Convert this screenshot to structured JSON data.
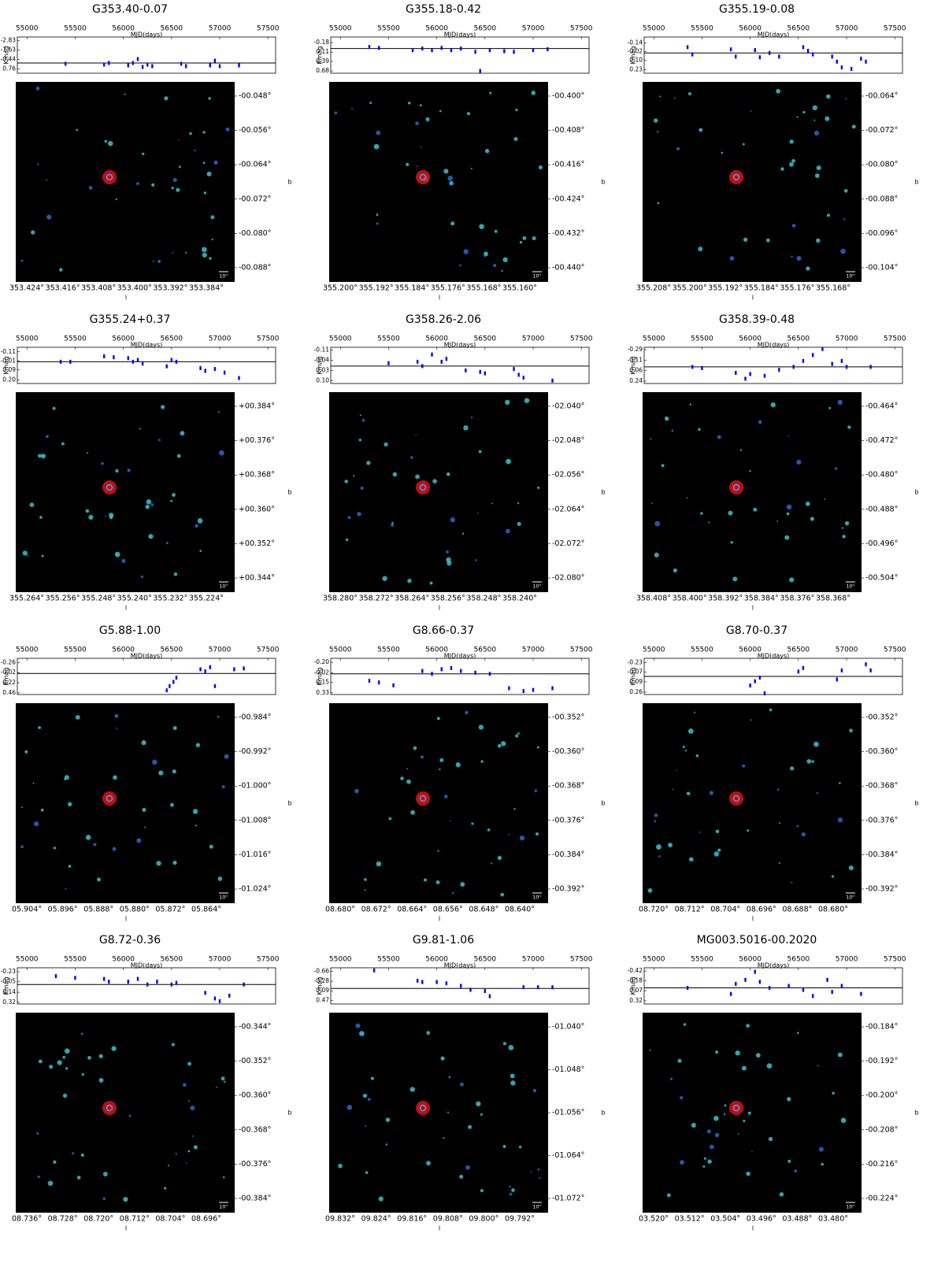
{
  "chart_data": [
    {
      "type": "scatter",
      "title": "G353.40-0.07",
      "xlabel": "MJD(days)",
      "ylabel": "Kmag",
      "color": "#0000ff",
      "y_inverted": true,
      "reference_line": 0,
      "xlim": [
        54900,
        57580
      ],
      "xticks": [
        55000,
        55500,
        56000,
        56500,
        57000,
        57500
      ],
      "ylim": [
        -3.3,
        1.3
      ],
      "yticks": [
        -2.83,
        -1.63,
        -0.44,
        0.76
      ],
      "x": [
        55400,
        55800,
        55850,
        56050,
        56100,
        56150,
        56200,
        56250,
        56300,
        56600,
        56650,
        56900,
        56950,
        57000,
        57200
      ],
      "values": [
        0.1,
        0.2,
        0,
        0.3,
        0,
        -0.5,
        0.5,
        0.2,
        0.4,
        0.1,
        0.4,
        0.3,
        -0.3,
        0.4,
        0.3
      ],
      "image": {
        "xlabel": "l",
        "ylabel": "b",
        "scale_label": "10''",
        "lon_labels": [
          "353.424°",
          "353.416°",
          "353.408°",
          "353.400°",
          "353.392°",
          "353.384°"
        ],
        "lat_labels": [
          "-00.048°",
          "-00.056°",
          "-00.064°",
          "-00.072°",
          "-00.080°",
          "-00.088°"
        ]
      }
    },
    {
      "type": "scatter",
      "title": "G355.18-0.42",
      "xlabel": "MJD(days)",
      "ylabel": "Kmag",
      "color": "#0000ff",
      "y_inverted": true,
      "reference_line": 0,
      "xlim": [
        54900,
        57580
      ],
      "xticks": [
        55000,
        55500,
        56000,
        56500,
        57000,
        57500
      ],
      "ylim": [
        -0.35,
        0.75
      ],
      "yticks": [
        -0.18,
        0.11,
        0.39,
        0.68
      ],
      "x": [
        55300,
        55400,
        55750,
        55850,
        55950,
        56050,
        56150,
        56250,
        56400,
        56450,
        56550,
        56700,
        56800,
        57000,
        57150
      ],
      "values": [
        -0.05,
        -0.02,
        0.05,
        0,
        0.05,
        -0.02,
        0.05,
        0,
        0.1,
        0.68,
        0.05,
        0.08,
        0.1,
        0.05,
        0.02
      ],
      "image": {
        "xlabel": "l",
        "ylabel": "b",
        "scale_label": "10''",
        "lon_labels": [
          "355.200°",
          "355.192°",
          "355.184°",
          "355.176°",
          "355.168°",
          "355.160°"
        ],
        "lat_labels": [
          "-00.400°",
          "-00.408°",
          "-00.416°",
          "-00.424°",
          "-00.432°",
          "-00.440°"
        ]
      }
    },
    {
      "type": "scatter",
      "title": "G355.19-0.08",
      "xlabel": "MJD(days)",
      "ylabel": "Kmag",
      "color": "#0000ff",
      "y_inverted": true,
      "reference_line": 0,
      "xlim": [
        54900,
        57580
      ],
      "xticks": [
        55000,
        55500,
        56000,
        56500,
        57000,
        57500
      ],
      "ylim": [
        -0.22,
        0.28
      ],
      "yticks": [
        -0.14,
        -0.02,
        {
          "value": 0.1,
          "label": "0.10"
        },
        0.23
      ],
      "x": [
        55350,
        55400,
        55800,
        55850,
        56050,
        56100,
        56200,
        56300,
        56550,
        56600,
        56650,
        56850,
        56900,
        56950,
        57050,
        57150,
        57200
      ],
      "values": [
        -0.08,
        0.02,
        -0.05,
        0.05,
        -0.04,
        0.06,
        0.0,
        0.05,
        -0.08,
        -0.03,
        0.02,
        0.05,
        0.12,
        0.2,
        0.22,
        0.08,
        0.12
      ],
      "image": {
        "xlabel": "l",
        "ylabel": "b",
        "scale_label": "10''",
        "lon_labels": [
          "355.208°",
          "355.200°",
          "355.192°",
          "355.184°",
          "355.176°",
          "355.168°"
        ],
        "lat_labels": [
          "-00.064°",
          "-00.072°",
          "-00.080°",
          "-00.088°",
          "-00.096°",
          "-00.104°"
        ]
      }
    },
    {
      "type": "scatter",
      "title": "G355.24+0.37",
      "xlabel": "MJD(days)",
      "ylabel": "Kmag",
      "color": "#0000ff",
      "y_inverted": true,
      "reference_line": 0,
      "xlim": [
        54900,
        57580
      ],
      "xticks": [
        55000,
        55500,
        56000,
        56500,
        57000,
        57500
      ],
      "ylim": [
        -0.16,
        0.24
      ],
      "yticks": [
        -0.11,
        -0.01,
        0.09,
        {
          "value": 0.2,
          "label": "0.20"
        }
      ],
      "x": [
        55350,
        55450,
        55800,
        55900,
        56050,
        56100,
        56150,
        56200,
        56450,
        56500,
        56550,
        56800,
        56850,
        56950,
        57050,
        57200
      ],
      "values": [
        0.0,
        0.0,
        -0.06,
        -0.05,
        -0.04,
        0.0,
        -0.02,
        0.02,
        0.05,
        -0.02,
        0.0,
        0.07,
        0.1,
        0.08,
        0.12,
        0.18
      ],
      "image": {
        "xlabel": "l",
        "ylabel": "b",
        "scale_label": "10''",
        "lon_labels": [
          "355.264°",
          "355.256°",
          "355.248°",
          "355.240°",
          "355.232°",
          "355.224°"
        ],
        "lat_labels": [
          "+00.384°",
          "+00.376°",
          "+00.368°",
          "+00.360°",
          "+00.352°",
          "+00.344°"
        ]
      }
    },
    {
      "type": "scatter",
      "title": "G358.26-2.06",
      "xlabel": "MJD(days)",
      "ylabel": "Kmag",
      "color": "#0000ff",
      "y_inverted": true,
      "reference_line": 0,
      "xlim": [
        54900,
        57580
      ],
      "xticks": [
        55000,
        55500,
        56000,
        56500,
        57000,
        57500
      ],
      "ylim": [
        -0.13,
        0.12
      ],
      "yticks": [
        -0.11,
        -0.04,
        0.03,
        {
          "value": 0.1,
          "label": "0.10"
        }
      ],
      "x": [
        55500,
        55800,
        55850,
        55950,
        56050,
        56100,
        56300,
        56450,
        56500,
        56800,
        56850,
        56900,
        57200
      ],
      "values": [
        -0.02,
        -0.03,
        0.0,
        -0.08,
        -0.03,
        -0.05,
        0.03,
        0.04,
        0.05,
        0.02,
        0.06,
        0.08,
        0.1
      ],
      "image": {
        "xlabel": "l",
        "ylabel": "b",
        "scale_label": "10''",
        "lon_labels": [
          "358.280°",
          "358.272°",
          "358.264°",
          "358.256°",
          "358.248°",
          "358.240°"
        ],
        "lat_labels": [
          "-02.040°",
          "-02.048°",
          "-02.056°",
          "-02.064°",
          "-02.072°",
          "-02.080°"
        ]
      }
    },
    {
      "type": "scatter",
      "title": "G358.39-0.48",
      "xlabel": "MJD(days)",
      "ylabel": "Kmag",
      "color": "#0000ff",
      "y_inverted": true,
      "reference_line": 0,
      "xlim": [
        54900,
        57580
      ],
      "xticks": [
        55000,
        55500,
        56000,
        56500,
        57000,
        57500
      ],
      "ylim": [
        -0.33,
        0.28
      ],
      "yticks": [
        -0.29,
        -0.11,
        0.06,
        0.24
      ],
      "x": [
        55400,
        55500,
        55850,
        55950,
        56000,
        56150,
        56300,
        56450,
        56550,
        56650,
        56750,
        56850,
        56950,
        57000,
        57250
      ],
      "values": [
        0.0,
        0.02,
        0.1,
        0.2,
        0.12,
        0.15,
        0.05,
        0.0,
        -0.1,
        -0.2,
        -0.3,
        -0.05,
        -0.1,
        0.0,
        0.0
      ],
      "image": {
        "xlabel": "l",
        "ylabel": "b",
        "scale_label": "10''",
        "lon_labels": [
          "358.408°",
          "358.400°",
          "358.392°",
          "358.384°",
          "358.376°",
          "358.368°"
        ],
        "lat_labels": [
          "-00.464°",
          "-00.472°",
          "-00.480°",
          "-00.488°",
          "-00.496°",
          "-00.504°"
        ]
      }
    },
    {
      "type": "scatter",
      "title": "G5.88-1.00",
      "xlabel": "MJD(days)",
      "ylabel": "Kmag",
      "color": "#0000ff",
      "y_inverted": true,
      "reference_line": 0,
      "xlim": [
        54900,
        57580
      ],
      "xticks": [
        55000,
        55500,
        56000,
        56500,
        57000,
        57500
      ],
      "ylim": [
        -0.36,
        0.5
      ],
      "yticks": [
        -0.26,
        -0.02,
        0.22,
        0.46
      ],
      "x": [
        56450,
        56480,
        56520,
        56550,
        56800,
        56850,
        56900,
        56950,
        57150,
        57250
      ],
      "values": [
        0.4,
        0.3,
        0.2,
        0.1,
        -0.1,
        -0.05,
        -0.15,
        0.3,
        -0.1,
        -0.12
      ],
      "image": {
        "xlabel": "l",
        "ylabel": "b",
        "scale_label": "10''",
        "lon_labels": [
          "05.904°",
          "05.896°",
          "05.888°",
          "05.880°",
          "05.872°",
          "05.864°"
        ],
        "lat_labels": [
          "-00.984°",
          "-00.992°",
          "-01.000°",
          "-01.008°",
          "-01.016°",
          "-01.024°"
        ]
      }
    },
    {
      "type": "scatter",
      "title": "G8.66-0.37",
      "xlabel": "MJD(days)",
      "ylabel": "Kmag",
      "color": "#0000ff",
      "y_inverted": true,
      "reference_line": 0,
      "xlim": [
        54900,
        57580
      ],
      "xticks": [
        55000,
        55500,
        56000,
        56500,
        57000,
        57500
      ],
      "ylim": [
        -0.27,
        0.36
      ],
      "yticks": [
        {
          "value": -0.2,
          "label": "-0.20"
        },
        -0.02,
        0.15,
        0.33
      ],
      "x": [
        55300,
        55400,
        55550,
        55850,
        55950,
        56050,
        56150,
        56250,
        56400,
        56550,
        56750,
        56900,
        57000,
        57200
      ],
      "values": [
        0.12,
        0.15,
        0.2,
        -0.05,
        0.0,
        -0.08,
        -0.1,
        -0.05,
        -0.02,
        0.0,
        0.25,
        0.3,
        0.28,
        0.25
      ],
      "image": {
        "xlabel": "l",
        "ylabel": "b",
        "scale_label": "10''",
        "lon_labels": [
          "08.680°",
          "08.672°",
          "08.664°",
          "08.656°",
          "08.648°",
          "08.640°"
        ],
        "lat_labels": [
          "-00.352°",
          "-00.360°",
          "-00.368°",
          "-00.376°",
          "-00.384°",
          "-00.392°"
        ]
      }
    },
    {
      "type": "scatter",
      "title": "G8.70-0.37",
      "xlabel": "MJD(days)",
      "ylabel": "Kmag",
      "color": "#0000ff",
      "y_inverted": true,
      "reference_line": 0,
      "xlim": [
        54900,
        57580
      ],
      "xticks": [
        55000,
        55500,
        56000,
        56500,
        57000,
        57500
      ],
      "ylim": [
        -0.3,
        0.3
      ],
      "yticks": [
        -0.23,
        -0.07,
        0.09,
        0.26
      ],
      "x": [
        56000,
        56050,
        56100,
        56150,
        56500,
        56550,
        56900,
        56950,
        57200,
        57250
      ],
      "values": [
        0.15,
        0.08,
        0.02,
        0.28,
        -0.08,
        -0.14,
        0.05,
        -0.1,
        -0.2,
        -0.1
      ],
      "image": {
        "xlabel": "l",
        "ylabel": "b",
        "scale_label": "10''",
        "lon_labels": [
          "08.720°",
          "08.712°",
          "08.704°",
          "08.696°",
          "08.688°",
          "08.680°"
        ],
        "lat_labels": [
          "-00.352°",
          "-00.360°",
          "-00.368°",
          "-00.376°",
          "-00.384°",
          "-00.392°"
        ]
      }
    },
    {
      "type": "scatter",
      "title": "G8.72-0.36",
      "xlabel": "MJD(days)",
      "ylabel": "Kmag",
      "color": "#0000ff",
      "y_inverted": true,
      "reference_line": 0,
      "xlim": [
        54900,
        57580
      ],
      "xticks": [
        55000,
        55500,
        56000,
        56500,
        57000,
        57500
      ],
      "ylim": [
        -0.3,
        0.35
      ],
      "yticks": [
        -0.23,
        -0.05,
        0.14,
        0.32
      ],
      "x": [
        55300,
        55500,
        55800,
        55850,
        56050,
        56150,
        56250,
        56350,
        56500,
        56550,
        56850,
        56950,
        57000,
        57100,
        57250
      ],
      "values": [
        -0.15,
        -0.12,
        -0.1,
        -0.05,
        -0.05,
        -0.1,
        0.0,
        -0.05,
        0.0,
        -0.03,
        0.15,
        0.25,
        0.3,
        0.2,
        0.0
      ],
      "image": {
        "xlabel": "l",
        "ylabel": "b",
        "scale_label": "10''",
        "lon_labels": [
          "08.736°",
          "08.728°",
          "08.720°",
          "08.712°",
          "08.704°",
          "08.696°"
        ],
        "lat_labels": [
          "-00.344°",
          "-00.352°",
          "-00.360°",
          "-00.368°",
          "-00.376°",
          "-00.384°"
        ]
      }
    },
    {
      "type": "scatter",
      "title": "G9.81-1.06",
      "xlabel": "MJD(days)",
      "ylabel": "Kmag",
      "color": "#0000ff",
      "y_inverted": true,
      "reference_line": 0,
      "xlim": [
        54900,
        57580
      ],
      "xticks": [
        55000,
        55500,
        56000,
        56500,
        57000,
        57500
      ],
      "ylim": [
        -0.8,
        0.6
      ],
      "yticks": [
        -0.66,
        -0.28,
        0.09,
        0.47
      ],
      "x": [
        55350,
        55800,
        55850,
        56000,
        56100,
        56250,
        56350,
        56500,
        56550,
        56900,
        57050,
        57200
      ],
      "values": [
        -0.7,
        -0.3,
        -0.25,
        -0.25,
        -0.2,
        -0.1,
        0.05,
        0.1,
        0.3,
        -0.05,
        -0.05,
        -0.05
      ],
      "image": {
        "xlabel": "l",
        "ylabel": "b",
        "scale_label": "10''",
        "lon_labels": [
          "09.832°",
          "09.824°",
          "09.816°",
          "09.808°",
          "09.800°",
          "09.792°"
        ],
        "lat_labels": [
          "-01.040°",
          "-01.048°",
          "-01.056°",
          "-01.064°",
          "-01.072°"
        ]
      }
    },
    {
      "type": "scatter",
      "title": "MG003.5016-00.2020",
      "xlabel": "MJD(days)",
      "ylabel": "Kmag",
      "color": "#0000ff",
      "y_inverted": true,
      "reference_line": 0,
      "xlim": [
        54900,
        57580
      ],
      "xticks": [
        55000,
        55500,
        56000,
        56500,
        57000,
        57500
      ],
      "ylim": [
        -0.5,
        0.4
      ],
      "yticks": [
        -0.42,
        -0.18,
        0.07,
        0.32
      ],
      "x": [
        55350,
        55800,
        55850,
        55950,
        56050,
        56100,
        56200,
        56400,
        56550,
        56650,
        56800,
        56850,
        56950,
        57150
      ],
      "values": [
        0.0,
        0.15,
        -0.1,
        -0.2,
        -0.4,
        -0.15,
        0.0,
        -0.05,
        0.05,
        0.2,
        -0.2,
        0.1,
        -0.05,
        0.15
      ],
      "image": {
        "xlabel": "l",
        "ylabel": "b",
        "scale_label": "10''",
        "lon_labels": [
          "03.520°",
          "03.512°",
          "03.504°",
          "03.496°",
          "03.488°",
          "03.480°"
        ],
        "lat_labels": [
          "-00.184°",
          "-00.192°",
          "-00.200°",
          "-00.208°",
          "-00.216°",
          "-00.224°"
        ]
      }
    }
  ]
}
